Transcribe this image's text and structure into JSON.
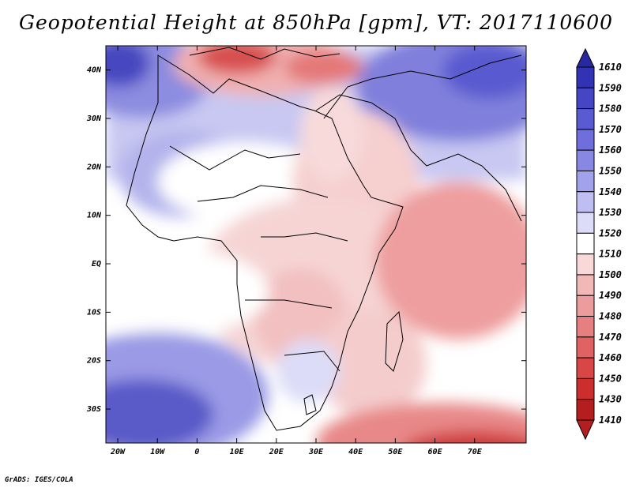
{
  "title": "Geopotential Height at 850hPa [gpm], VT: 2017110600",
  "footer": "GrADS: IGES/COLA",
  "map": {
    "lon_range": [
      -23,
      83
    ],
    "lat_range": [
      -37,
      45
    ],
    "lat_ticks": [
      "40N",
      "30N",
      "20N",
      "10N",
      "EQ",
      "10S",
      "20S",
      "30S"
    ],
    "lon_ticks": [
      "20W",
      "10W",
      "0",
      "10E",
      "20E",
      "30E",
      "40E",
      "50E",
      "60E",
      "70E"
    ]
  },
  "colorbar": {
    "levels": [
      "1610",
      "1590",
      "1580",
      "1570",
      "1560",
      "1550",
      "1540",
      "1530",
      "1520",
      "1510",
      "1500",
      "1490",
      "1480",
      "1470",
      "1460",
      "1450",
      "1430",
      "1410"
    ],
    "colors": [
      "#2828a0",
      "#3232b4",
      "#4646c4",
      "#5a5ad2",
      "#6e6edc",
      "#8888e4",
      "#a2a2ec",
      "#bebef2",
      "#dcdcf8",
      "#ffffff",
      "#f8d8d8",
      "#f2b8b8",
      "#ec9c9c",
      "#e68080",
      "#e06262",
      "#d84646",
      "#cc2e2e",
      "#b41e1e"
    ]
  }
}
